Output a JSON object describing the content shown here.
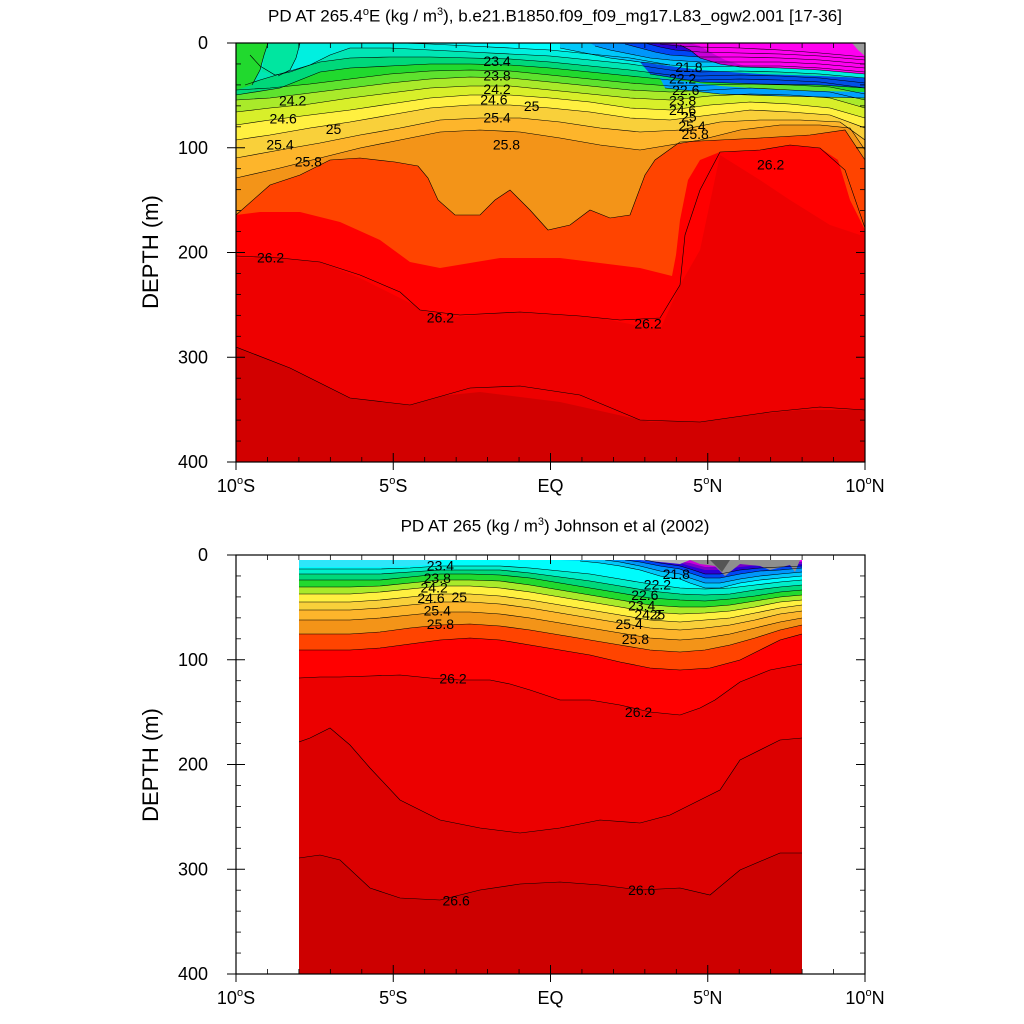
{
  "chart_data": [
    {
      "type": "contour",
      "title_prefix": "PD AT 265.4",
      "title_deg": "o",
      "title_mid": "E (kg / m",
      "title_sup": "3",
      "title_suffix": "), b.e21.B1850.f09_f09_mg17.L83_ogw2.001 [17-36]",
      "ylabel": "DEPTH (m)",
      "xlim": [
        -10,
        10
      ],
      "ylim": [
        400,
        0
      ],
      "x_ticks": [
        {
          "value": -10,
          "label": "10",
          "sup": "o",
          "suffix": "S"
        },
        {
          "value": -5,
          "label": "5",
          "sup": "o",
          "suffix": "S"
        },
        {
          "value": 0,
          "label": "EQ",
          "sup": "",
          "suffix": ""
        },
        {
          "value": 5,
          "label": "5",
          "sup": "o",
          "suffix": "N"
        },
        {
          "value": 10,
          "label": "10",
          "sup": "o",
          "suffix": "N"
        }
      ],
      "y_ticks": [
        "0",
        "100",
        "200",
        "300",
        "400"
      ],
      "contour_labels": [
        {
          "text": "23.4",
          "lat": -1.7,
          "depth": 17
        },
        {
          "text": "23.8",
          "lat": -1.7,
          "depth": 31
        },
        {
          "text": "24.2",
          "lat": -1.7,
          "depth": 44
        },
        {
          "text": "24.6",
          "lat": -1.8,
          "depth": 54
        },
        {
          "text": "25",
          "lat": -0.6,
          "depth": 60
        },
        {
          "text": "25.4",
          "lat": -1.7,
          "depth": 71
        },
        {
          "text": "25.8",
          "lat": -1.4,
          "depth": 97
        },
        {
          "text": "24.2",
          "lat": -8.2,
          "depth": 55
        },
        {
          "text": "24.6",
          "lat": -8.5,
          "depth": 72
        },
        {
          "text": "25",
          "lat": -6.9,
          "depth": 82
        },
        {
          "text": "25.4",
          "lat": -8.6,
          "depth": 97
        },
        {
          "text": "25.8",
          "lat": -7.7,
          "depth": 113
        },
        {
          "text": "21.8",
          "lat": 4.4,
          "depth": 23
        },
        {
          "text": "22.2",
          "lat": 4.2,
          "depth": 34
        },
        {
          "text": "22.6",
          "lat": 4.3,
          "depth": 45
        },
        {
          "text": "23.8",
          "lat": 4.2,
          "depth": 55
        },
        {
          "text": "24.6",
          "lat": 4.2,
          "depth": 64
        },
        {
          "text": "25",
          "lat": 4.4,
          "depth": 70
        },
        {
          "text": "25.4",
          "lat": 4.5,
          "depth": 79
        },
        {
          "text": "25.8",
          "lat": 4.6,
          "depth": 87
        },
        {
          "text": "26.2",
          "lat": 7.0,
          "depth": 116
        },
        {
          "text": "26.2",
          "lat": -8.9,
          "depth": 205
        },
        {
          "text": "26.2",
          "lat": -3.5,
          "depth": 262
        },
        {
          "text": "26.2",
          "lat": 3.1,
          "depth": 268
        }
      ]
    },
    {
      "type": "contour",
      "title_prefix": "PD AT 265 (kg / m",
      "title_sup": "3",
      "title_suffix": ") Johnson et al (2002)",
      "ylabel": "DEPTH (m)",
      "xlim": [
        -10,
        10
      ],
      "ylim": [
        400,
        0
      ],
      "data_lat_range": [
        -8,
        8
      ],
      "x_ticks": [
        {
          "value": -10,
          "label": "10",
          "sup": "o",
          "suffix": "S"
        },
        {
          "value": -5,
          "label": "5",
          "sup": "o",
          "suffix": "S"
        },
        {
          "value": 0,
          "label": "EQ",
          "sup": "",
          "suffix": ""
        },
        {
          "value": 5,
          "label": "5",
          "sup": "o",
          "suffix": "N"
        },
        {
          "value": 10,
          "label": "10",
          "sup": "o",
          "suffix": "N"
        }
      ],
      "y_ticks": [
        "0",
        "100",
        "200",
        "300",
        "400"
      ],
      "contour_labels": [
        {
          "text": "23.4",
          "lat": -3.5,
          "depth": 10
        },
        {
          "text": "23.8",
          "lat": -3.6,
          "depth": 22
        },
        {
          "text": "24.2",
          "lat": -3.7,
          "depth": 31
        },
        {
          "text": "24.6",
          "lat": -3.8,
          "depth": 41
        },
        {
          "text": "25",
          "lat": -2.9,
          "depth": 40
        },
        {
          "text": "25.4",
          "lat": -3.6,
          "depth": 53
        },
        {
          "text": "25.8",
          "lat": -3.5,
          "depth": 66
        },
        {
          "text": "21.8",
          "lat": 4.0,
          "depth": 18
        },
        {
          "text": "22.2",
          "lat": 3.4,
          "depth": 28
        },
        {
          "text": "22.6",
          "lat": 3.0,
          "depth": 38
        },
        {
          "text": "23.4",
          "lat": 2.9,
          "depth": 48
        },
        {
          "text": "24.2",
          "lat": 3.1,
          "depth": 57
        },
        {
          "text": "25",
          "lat": 3.4,
          "depth": 57
        },
        {
          "text": "25.4",
          "lat": 2.5,
          "depth": 66
        },
        {
          "text": "25.8",
          "lat": 2.7,
          "depth": 80
        },
        {
          "text": "26.2",
          "lat": -3.1,
          "depth": 118
        },
        {
          "text": "26.2",
          "lat": 2.8,
          "depth": 150
        },
        {
          "text": "26.6",
          "lat": -3.0,
          "depth": 330
        },
        {
          "text": "26.6",
          "lat": 2.9,
          "depth": 320
        }
      ]
    }
  ]
}
